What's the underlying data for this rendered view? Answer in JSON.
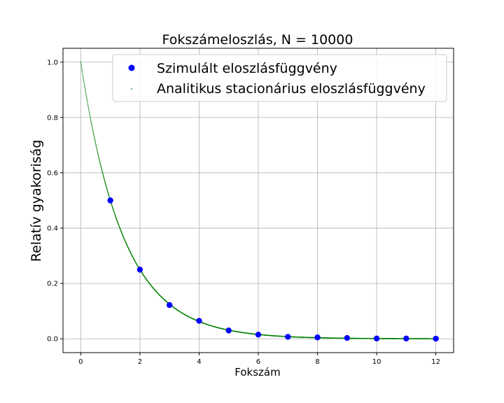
{
  "chart_data": {
    "type": "scatter",
    "title": "Fokszámeloszlás, N = 10000",
    "xlabel": "Fokszám",
    "ylabel": "Relatív gyakoriság",
    "xlim": [
      -0.6,
      12.6
    ],
    "ylim": [
      -0.05,
      1.05
    ],
    "xticks": [
      0,
      2,
      4,
      6,
      8,
      10,
      12
    ],
    "yticks": [
      0.0,
      0.2,
      0.4,
      0.6,
      0.8,
      1.0
    ],
    "xtick_labels": [
      "0",
      "2",
      "4",
      "6",
      "8",
      "10",
      "12"
    ],
    "ytick_labels": [
      "0.0",
      "0.2",
      "0.4",
      "0.6",
      "0.8",
      "1.0"
    ],
    "grid": true,
    "legend_position": "top-right",
    "series": [
      {
        "name": "Szimulált eloszlásfüggvény",
        "marker": "large-dot",
        "color": "#0000ff",
        "x": [
          1,
          2,
          3,
          4,
          5,
          6,
          7,
          8,
          9,
          10,
          11,
          12
        ],
        "y": [
          0.5,
          0.25,
          0.122,
          0.065,
          0.03,
          0.015,
          0.007,
          0.005,
          0.003,
          0.001,
          0.001,
          0.0005
        ]
      },
      {
        "name": "Analitikus stacionárius eloszlásfüggvény",
        "marker": "small-dot",
        "color": "#008000",
        "function": "2^(-x)",
        "x_range": [
          0,
          12
        ]
      }
    ]
  }
}
